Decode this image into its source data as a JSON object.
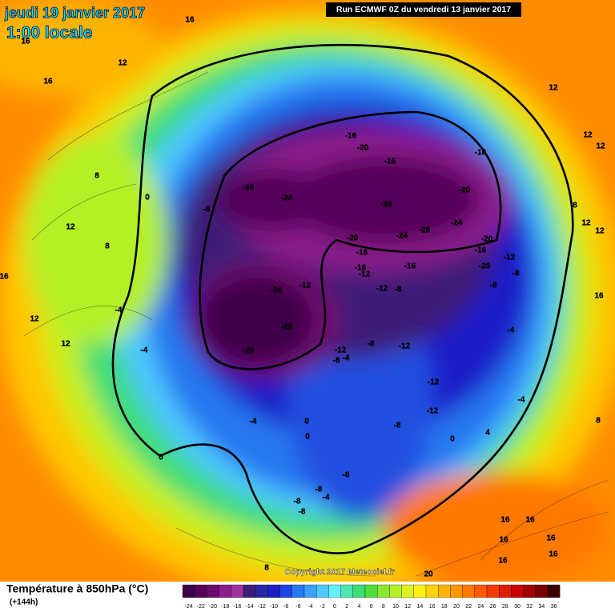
{
  "header": {
    "date": "jeudi 19 janvier 2017",
    "time": "1:00 locale",
    "run": "Run ECMWF 0Z du vendredi 13 janvier 2017"
  },
  "copyright": "Copyright 2017 Meteociel.fr",
  "legend": {
    "title": "Température à 850hPa (°C)",
    "subtitle": "(+144h)",
    "ticks": [
      -24,
      -22,
      -20,
      -18,
      -16,
      -14,
      -12,
      -10,
      -8,
      -6,
      -4,
      -2,
      0,
      2,
      4,
      6,
      8,
      10,
      12,
      14,
      16,
      18,
      20,
      22,
      24,
      26,
      28,
      30,
      32,
      34,
      36
    ],
    "colors": [
      "#3c0046",
      "#55005a",
      "#6e0a6e",
      "#8c1e8c",
      "#a032a0",
      "#3c1e78",
      "#2828a0",
      "#1e1ec8",
      "#1e46e6",
      "#2878f0",
      "#3ca0ff",
      "#50c8ff",
      "#64f0ff",
      "#50e6b4",
      "#3cdc78",
      "#50dc3c",
      "#8ce632",
      "#b4f028",
      "#dcf01e",
      "#fff014",
      "#ffd20a",
      "#ffb400",
      "#ff9600",
      "#ff7800",
      "#ff5a00",
      "#f03c00",
      "#dc1e00",
      "#c80000",
      "#a00000",
      "#780000",
      "#3a0000"
    ]
  },
  "map_labels": [
    -16,
    -20,
    -16,
    -16,
    -28,
    -24,
    -28,
    -20,
    -24,
    -24,
    -28,
    -20,
    -20,
    -16,
    -16,
    -12,
    -16,
    -12,
    -16,
    -20,
    -8,
    -24,
    -12,
    -12,
    -8,
    -8,
    -28,
    -28,
    -12,
    -8,
    -12,
    -8,
    -4,
    -12,
    -12,
    -8,
    0,
    0,
    -4,
    0,
    -8,
    -8,
    -4,
    -8,
    -8,
    0,
    -4,
    -4,
    4,
    8,
    12,
    12,
    12,
    12,
    12,
    8,
    16,
    12,
    16,
    16,
    16,
    8,
    0,
    -8,
    12,
    8,
    -4,
    -4,
    12,
    16,
    12,
    16,
    16,
    16,
    16,
    16,
    16,
    8,
    20
  ]
}
